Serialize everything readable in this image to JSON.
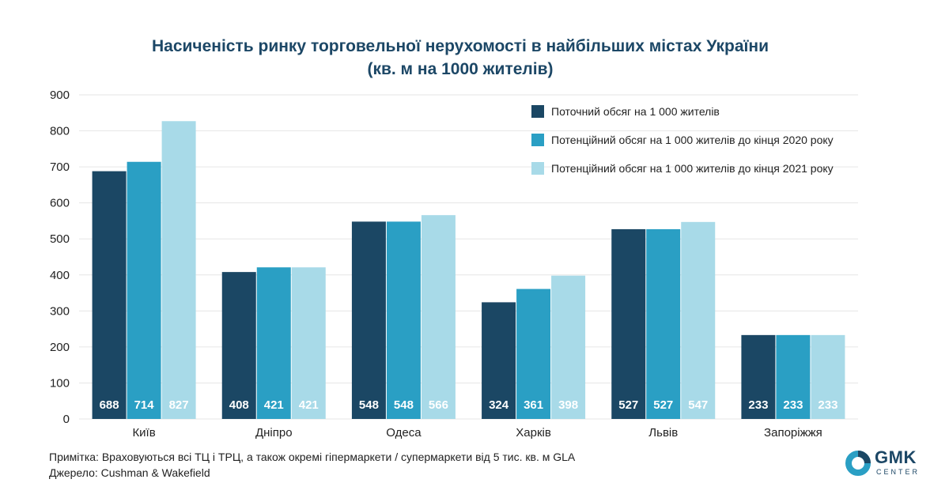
{
  "logo": {
    "name": "GMK",
    "sub": "CENTER"
  },
  "note": "Примітка: Враховуються всі ТЦ і ТРЦ, а також окремі гіпермаркети / супермаркети від 5 тис. кв. м GLA",
  "source": "Джерело: Cushman & Wakefield",
  "chart_data": {
    "type": "bar",
    "title": "Насиченість ринку торговельної нерухомості в найбільших містах України",
    "subtitle": "(кв. м на 1000 жителів)",
    "categories": [
      "Київ",
      "Дніпро",
      "Одеса",
      "Харків",
      "Львів",
      "Запоріжжя"
    ],
    "series": [
      {
        "name": "Поточний обсяг на 1 000 жителів",
        "color": "#1b4764",
        "values": [
          688,
          408,
          548,
          324,
          527,
          233
        ]
      },
      {
        "name": "Потенційний обсяг на 1 000 жителів до кінця 2020 року",
        "color": "#2a9fc4",
        "values": [
          714,
          421,
          548,
          361,
          527,
          233
        ]
      },
      {
        "name": "Потенційний обсяг на 1 000 жителів до кінця 2021 року",
        "color": "#a8dae8",
        "values": [
          827,
          421,
          566,
          398,
          547,
          233
        ]
      }
    ],
    "ylim": [
      0,
      900
    ],
    "yticks": [
      0,
      100,
      200,
      300,
      400,
      500,
      600,
      700,
      800,
      900
    ],
    "grid": true,
    "legend": "top-right"
  }
}
